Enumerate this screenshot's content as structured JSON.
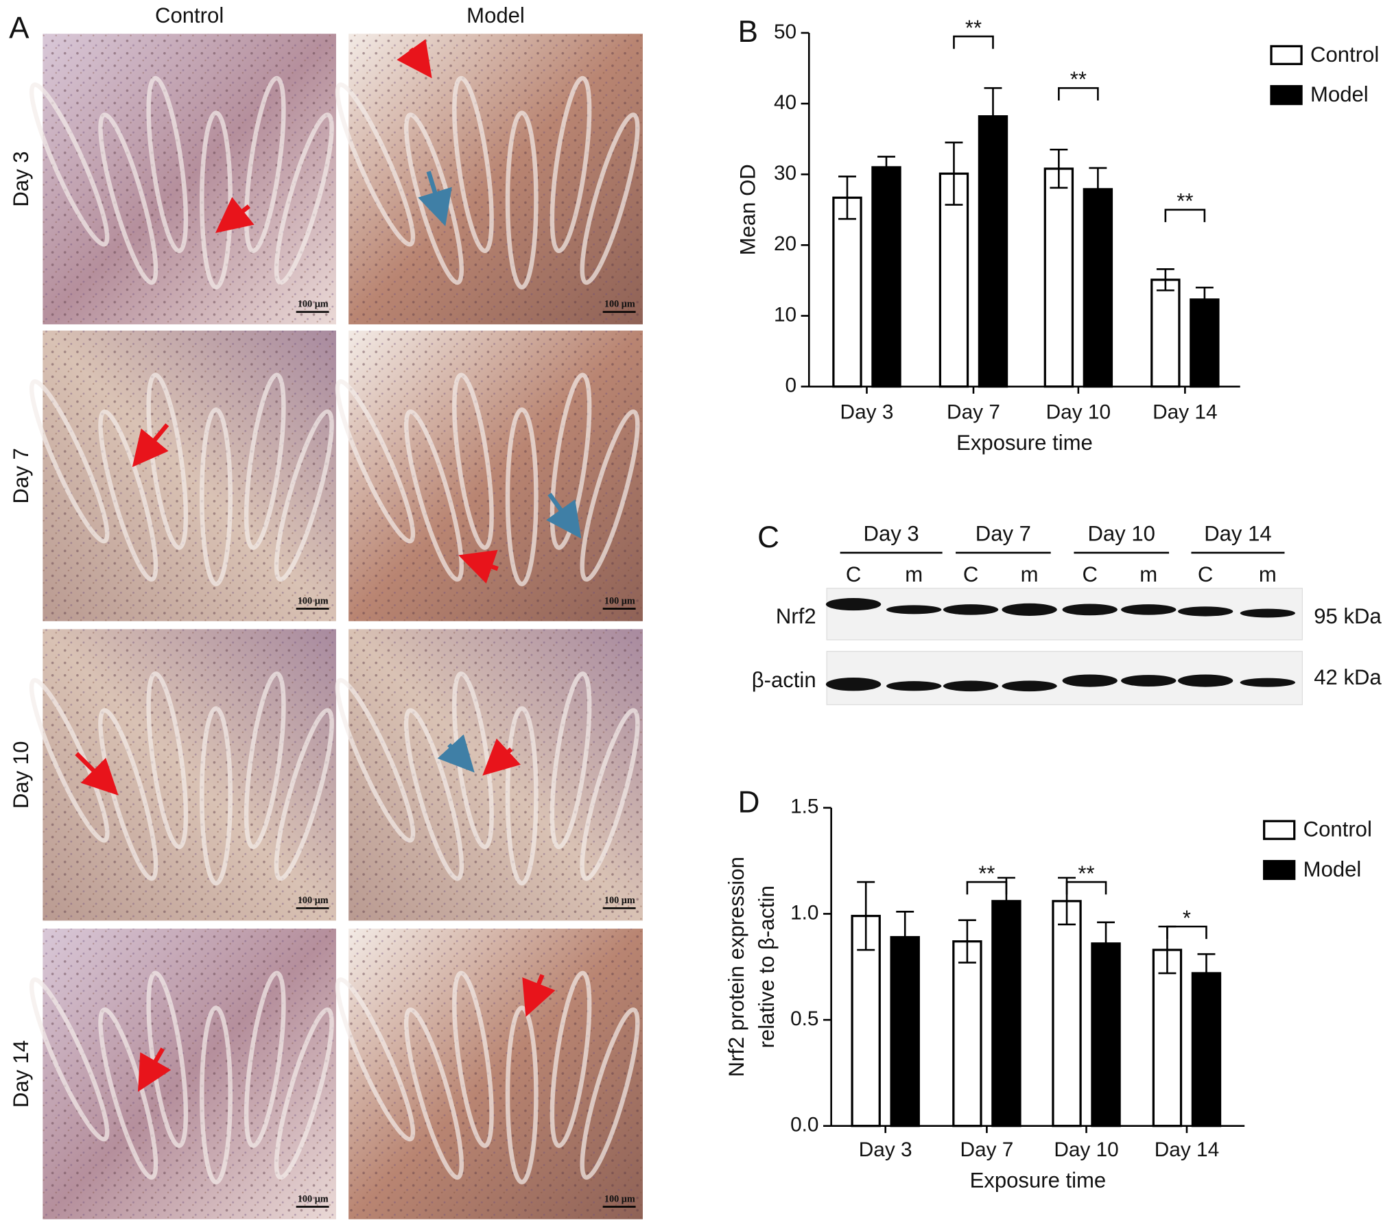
{
  "panel_a": {
    "label": "A",
    "columns": [
      "Control",
      "Model"
    ],
    "rows": [
      "Day 3",
      "Day 7",
      "Day 10",
      "Day 14"
    ],
    "scale_bar": "100 μm"
  },
  "panel_c": {
    "label": "C",
    "days": [
      "Day 3",
      "Day 7",
      "Day 10",
      "Day 14"
    ],
    "lanes": [
      "C",
      "m"
    ],
    "proteins": [
      {
        "name": "Nrf2",
        "size": "95 kDa"
      },
      {
        "name": "β-actin",
        "size": "42 kDa"
      }
    ]
  },
  "chart_data": [
    {
      "type": "bar",
      "panel_label": "B",
      "ylabel": [
        "Mean OD"
      ],
      "xlabel": "Exposure time",
      "categories": [
        "Day 3",
        "Day 7",
        "Day 10",
        "Day 14"
      ],
      "series": [
        {
          "name": "Control",
          "color": "#ffffff",
          "values": [
            26.7,
            30.1,
            30.8,
            15.1
          ],
          "errors": [
            3.0,
            4.4,
            2.7,
            1.5
          ]
        },
        {
          "name": "Model",
          "color": "#000000",
          "values": [
            31.0,
            38.2,
            27.9,
            12.3
          ],
          "errors": [
            1.5,
            4.0,
            3.0,
            1.7
          ]
        }
      ],
      "ylim": [
        0,
        50
      ],
      "yticks": [
        0,
        10,
        20,
        30,
        40,
        50
      ],
      "legend": "upper right",
      "annotations": [
        {
          "category": 1,
          "text": "**",
          "y": 49.5
        },
        {
          "category": 2,
          "text": "**",
          "y": 42.2
        },
        {
          "category": 3,
          "text": "**",
          "y": 25
        }
      ]
    },
    {
      "type": "bar",
      "panel_label": "D",
      "ylabel": [
        "Nrf2 protein expression",
        "relative to β-actin"
      ],
      "xlabel": "Exposure time",
      "categories": [
        "Day 3",
        "Day 7",
        "Day 10",
        "Day 14"
      ],
      "series": [
        {
          "name": "Control",
          "color": "#ffffff",
          "values": [
            0.99,
            0.87,
            1.06,
            0.83
          ],
          "errors": [
            0.16,
            0.1,
            0.11,
            0.11
          ]
        },
        {
          "name": "Model",
          "color": "#000000",
          "values": [
            0.89,
            1.06,
            0.86,
            0.72
          ],
          "errors": [
            0.12,
            0.11,
            0.1,
            0.09
          ]
        }
      ],
      "ylim": [
        0,
        1.5
      ],
      "yticks": [
        {
          "value": 0,
          "label": "0.0"
        },
        {
          "value": 0.5,
          "label": "0.5"
        },
        {
          "value": 1,
          "label": "1.0"
        },
        {
          "value": 1.5,
          "label": "1.5"
        }
      ],
      "legend": "upper right",
      "annotations": [
        {
          "category": 1,
          "text": "**",
          "y": 1.15
        },
        {
          "category": 2,
          "text": "**",
          "y": 1.15
        },
        {
          "category": 3,
          "text": "*",
          "y": 0.94
        }
      ]
    }
  ]
}
